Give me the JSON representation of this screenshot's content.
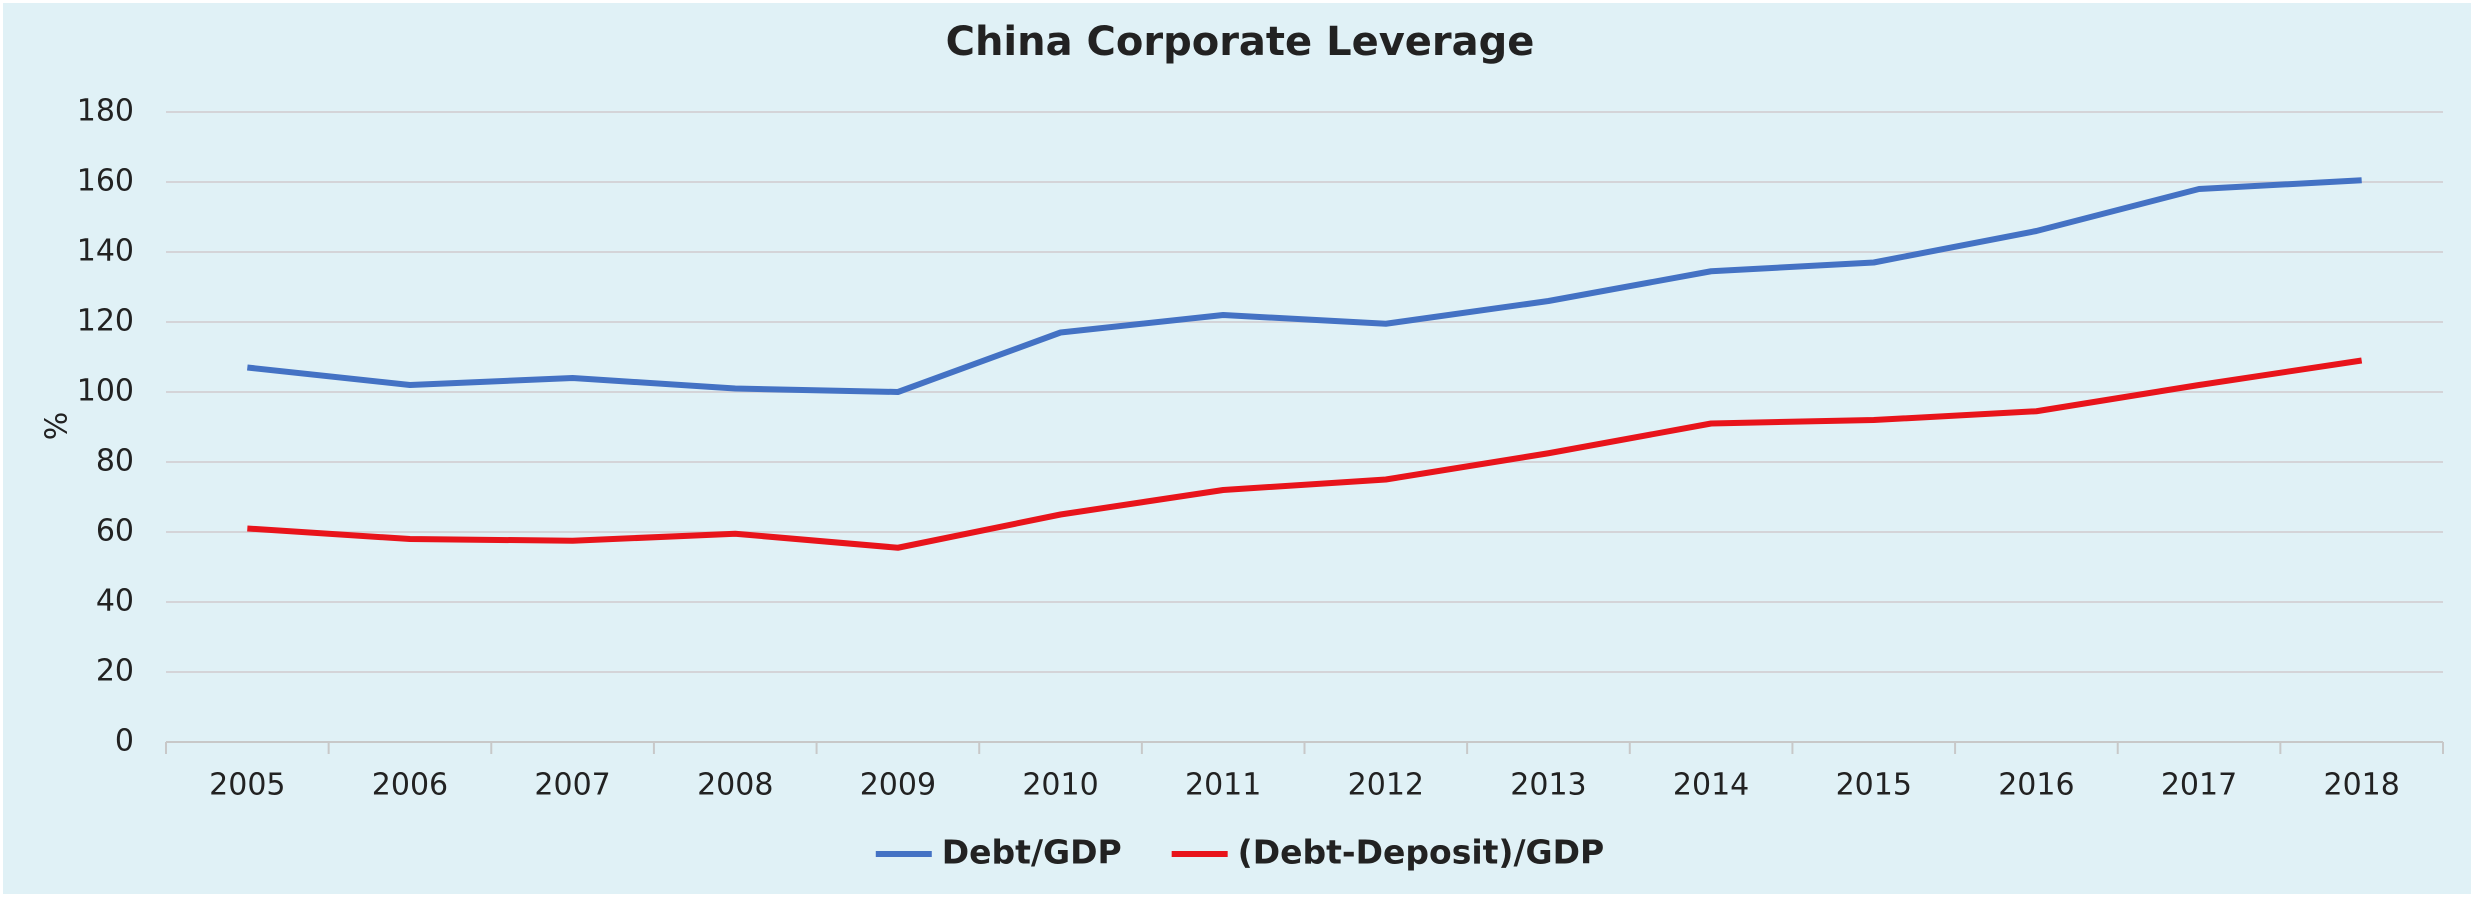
{
  "chart_data": {
    "type": "line",
    "title": "China Corporate Leverage",
    "y_label": "%",
    "categories": [
      "2005",
      "2006",
      "2007",
      "2008",
      "2009",
      "2010",
      "2011",
      "2012",
      "2013",
      "2014",
      "2015",
      "2016",
      "2017",
      "2018"
    ],
    "series": [
      {
        "name": "Debt/GDP",
        "color": "#4472c4",
        "values": [
          107,
          102,
          104,
          101,
          100,
          117,
          122,
          119.5,
          126,
          134.5,
          137,
          146,
          158,
          160.5
        ]
      },
      {
        "name": "(Debt-Deposit)/GDP",
        "color": "#e8141b",
        "values": [
          61,
          58,
          57.5,
          59.5,
          55.5,
          65,
          72,
          75,
          82.5,
          91,
          92,
          94.5,
          102,
          109
        ]
      }
    ],
    "ylim": [
      0,
      180
    ],
    "yticks": [
      0,
      20,
      40,
      60,
      80,
      100,
      120,
      140,
      160,
      180
    ],
    "grid": true,
    "legend": "bottom"
  }
}
